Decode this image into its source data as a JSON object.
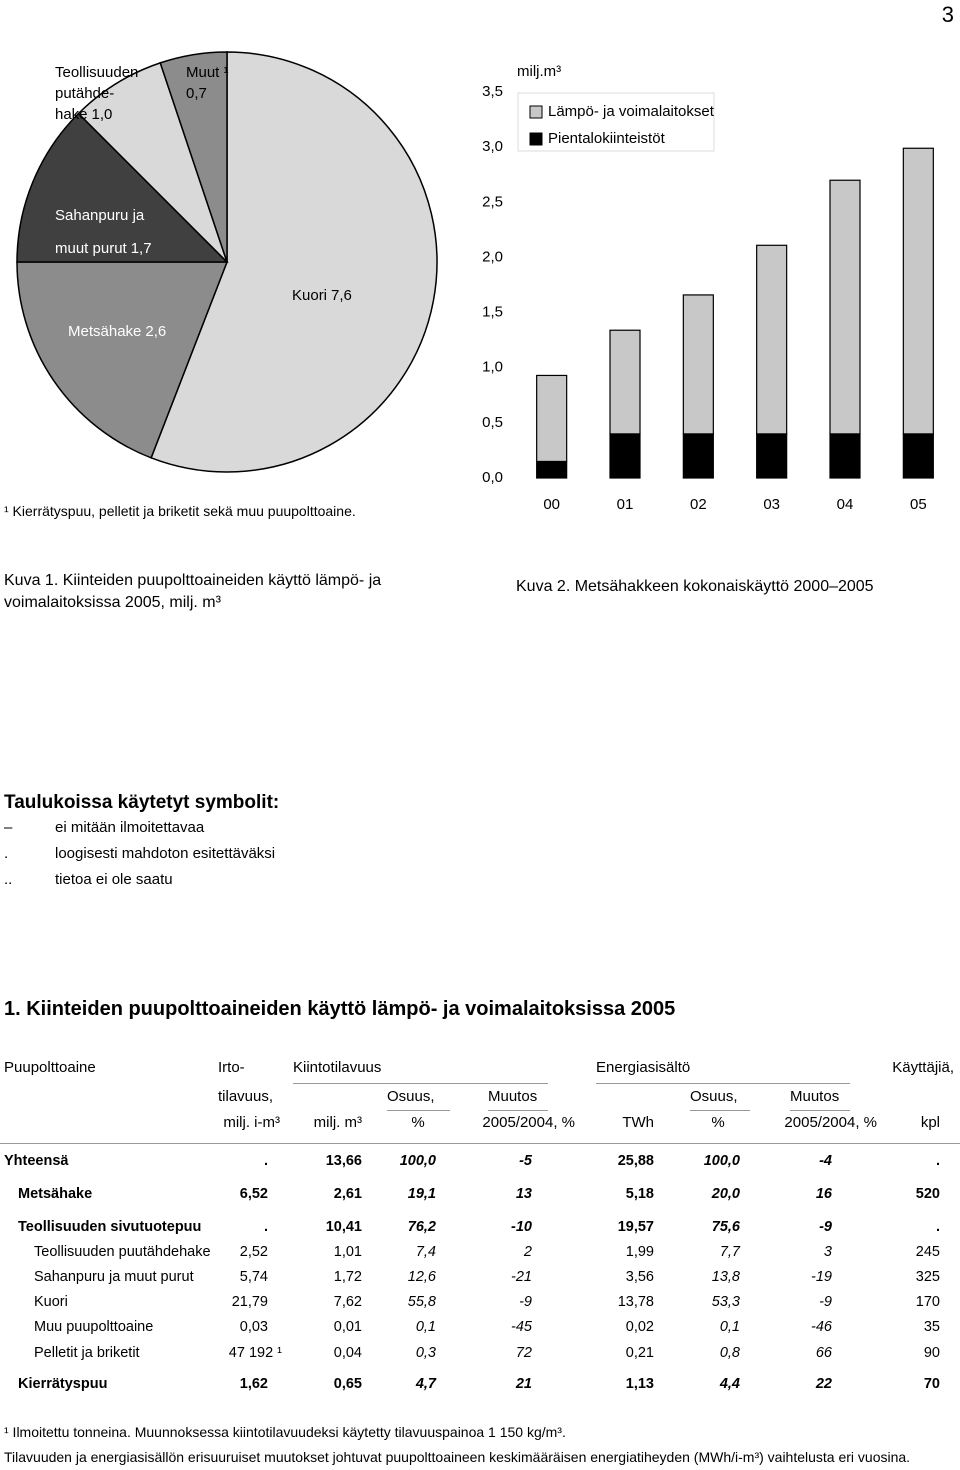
{
  "page_number": "3",
  "chart_data": [
    {
      "type": "pie",
      "title": "Kuva 1. Kiinteiden puupolttoaineiden käyttö lämpö- ja\nvoimalaitoksissa 2005, milj. m³",
      "note": "¹ Kierrätyspuu, pelletit ja briketit sekä muu puupolttoaine.",
      "categories": [
        "Kuori",
        "Metsähake",
        "Sahanpuru ja\n\nmuut purut",
        "Teollisuuden\nputähde-\nhake",
        "Muut ¹"
      ],
      "values": [
        7.6,
        2.6,
        1.7,
        1.0,
        0.7
      ],
      "value_labels": [
        "7,6",
        "2,6",
        "1,7",
        "1,0",
        "0,7"
      ],
      "colors": [
        "#d9d9d9",
        "#8c8c8c",
        "#404040",
        "#d9d9d9",
        "#8c8c8c"
      ]
    },
    {
      "type": "bar",
      "stacked": true,
      "title": "Kuva 2. Metsähakkeen kokonaiskäyttö 2000–2005",
      "y_label": "milj.m³",
      "categories": [
        "00",
        "01",
        "02",
        "03",
        "04",
        "05"
      ],
      "series": [
        {
          "name": "Pientalokiinteistöt",
          "color": "#000000",
          "values": [
            0.15,
            0.4,
            0.4,
            0.4,
            0.4,
            0.4
          ]
        },
        {
          "name": "Lämpö- ja voimalaitokset",
          "color": "#c8c8c8",
          "values": [
            0.78,
            0.94,
            1.26,
            1.71,
            2.3,
            2.59
          ]
        }
      ],
      "ylim": [
        0,
        3.5
      ],
      "yticks": [
        {
          "value": 0,
          "label": "0,0"
        },
        {
          "value": 0.5,
          "label": "0,5"
        },
        {
          "value": 1,
          "label": "1,0"
        },
        {
          "value": 1.5,
          "label": "1,5"
        },
        {
          "value": 2,
          "label": "2,0"
        },
        {
          "value": 2.5,
          "label": "2,5"
        },
        {
          "value": 3,
          "label": "3,0"
        },
        {
          "value": 3.5,
          "label": "3,5"
        }
      ],
      "grid": false
    }
  ],
  "symbols": {
    "title": "Taulukoissa käytetyt symbolit:",
    "items": [
      {
        "symbol": "–",
        "text": "ei mitään ilmoitettavaa"
      },
      {
        "symbol": ".",
        "text": "loogisesti mahdoton esitettäväksi"
      },
      {
        "symbol": "..",
        "text": "tietoa ei ole saatu"
      }
    ]
  },
  "table": {
    "title": "1. Kiinteiden puupolttoaineiden käyttö lämpö- ja voimalaitoksissa 2005",
    "header": [
      [
        "Puupolttoaine",
        "Irto-",
        "Kiintotilavuus",
        "Energiasisältö",
        "Käyttäjiä,"
      ],
      [
        "tilavuus,",
        "Osuus,",
        "Muutos",
        "Osuus,",
        "Muutos"
      ],
      [
        "milj. i-m³",
        "milj. m³",
        "%",
        "2005/2004, %",
        "TWh",
        "%",
        "2005/2004, %",
        "kpl"
      ]
    ],
    "rows": [
      [
        "Yhteensä",
        ".",
        "13,66",
        "100,0",
        "-5",
        "25,88",
        "100,0",
        "-4",
        "."
      ],
      [
        "Metsähake",
        "6,52",
        "2,61",
        "19,1",
        "13",
        "5,18",
        "20,0",
        "16",
        "520"
      ],
      [
        "Teollisuuden sivutuotepuu",
        ".",
        "10,41",
        "76,2",
        "-10",
        "19,57",
        "75,6",
        "-9",
        "."
      ],
      [
        "Teollisuuden puutähdehake",
        "2,52",
        "1,01",
        "7,4",
        "2",
        "1,99",
        "7,7",
        "3",
        "245"
      ],
      [
        "Sahanpuru ja muut purut",
        "5,74",
        "1,72",
        "12,6",
        "-21",
        "3,56",
        "13,8",
        "-19",
        "325"
      ],
      [
        "Kuori",
        "21,79",
        "7,62",
        "55,8",
        "-9",
        "13,78",
        "53,3",
        "-9",
        "170"
      ],
      [
        "Muu puupolttoaine",
        "0,03",
        "0,01",
        "0,1",
        "-45",
        "0,02",
        "0,1",
        "-46",
        "35"
      ],
      [
        "Pelletit ja briketit",
        "47 192 ¹",
        "0,04",
        "0,3",
        "72",
        "0,21",
        "0,8",
        "66",
        "90"
      ],
      [
        "Kierrätyspuu",
        "1,62",
        "0,65",
        "4,7",
        "21",
        "1,13",
        "4,4",
        "22",
        "70"
      ]
    ],
    "footnotes": [
      "¹  Ilmoitettu tonneina. Muunnoksessa kiintotilavuudeksi käytetty tilavuuspainoa 1 150 kg/m³.",
      "Tilavuuden ja energiasisällön erisuuruiset muutokset johtuvat puupolttoaineen  keskimääräisen energiatiheyden (MWh/i-m³) vaihtelusta eri vuosina."
    ]
  }
}
